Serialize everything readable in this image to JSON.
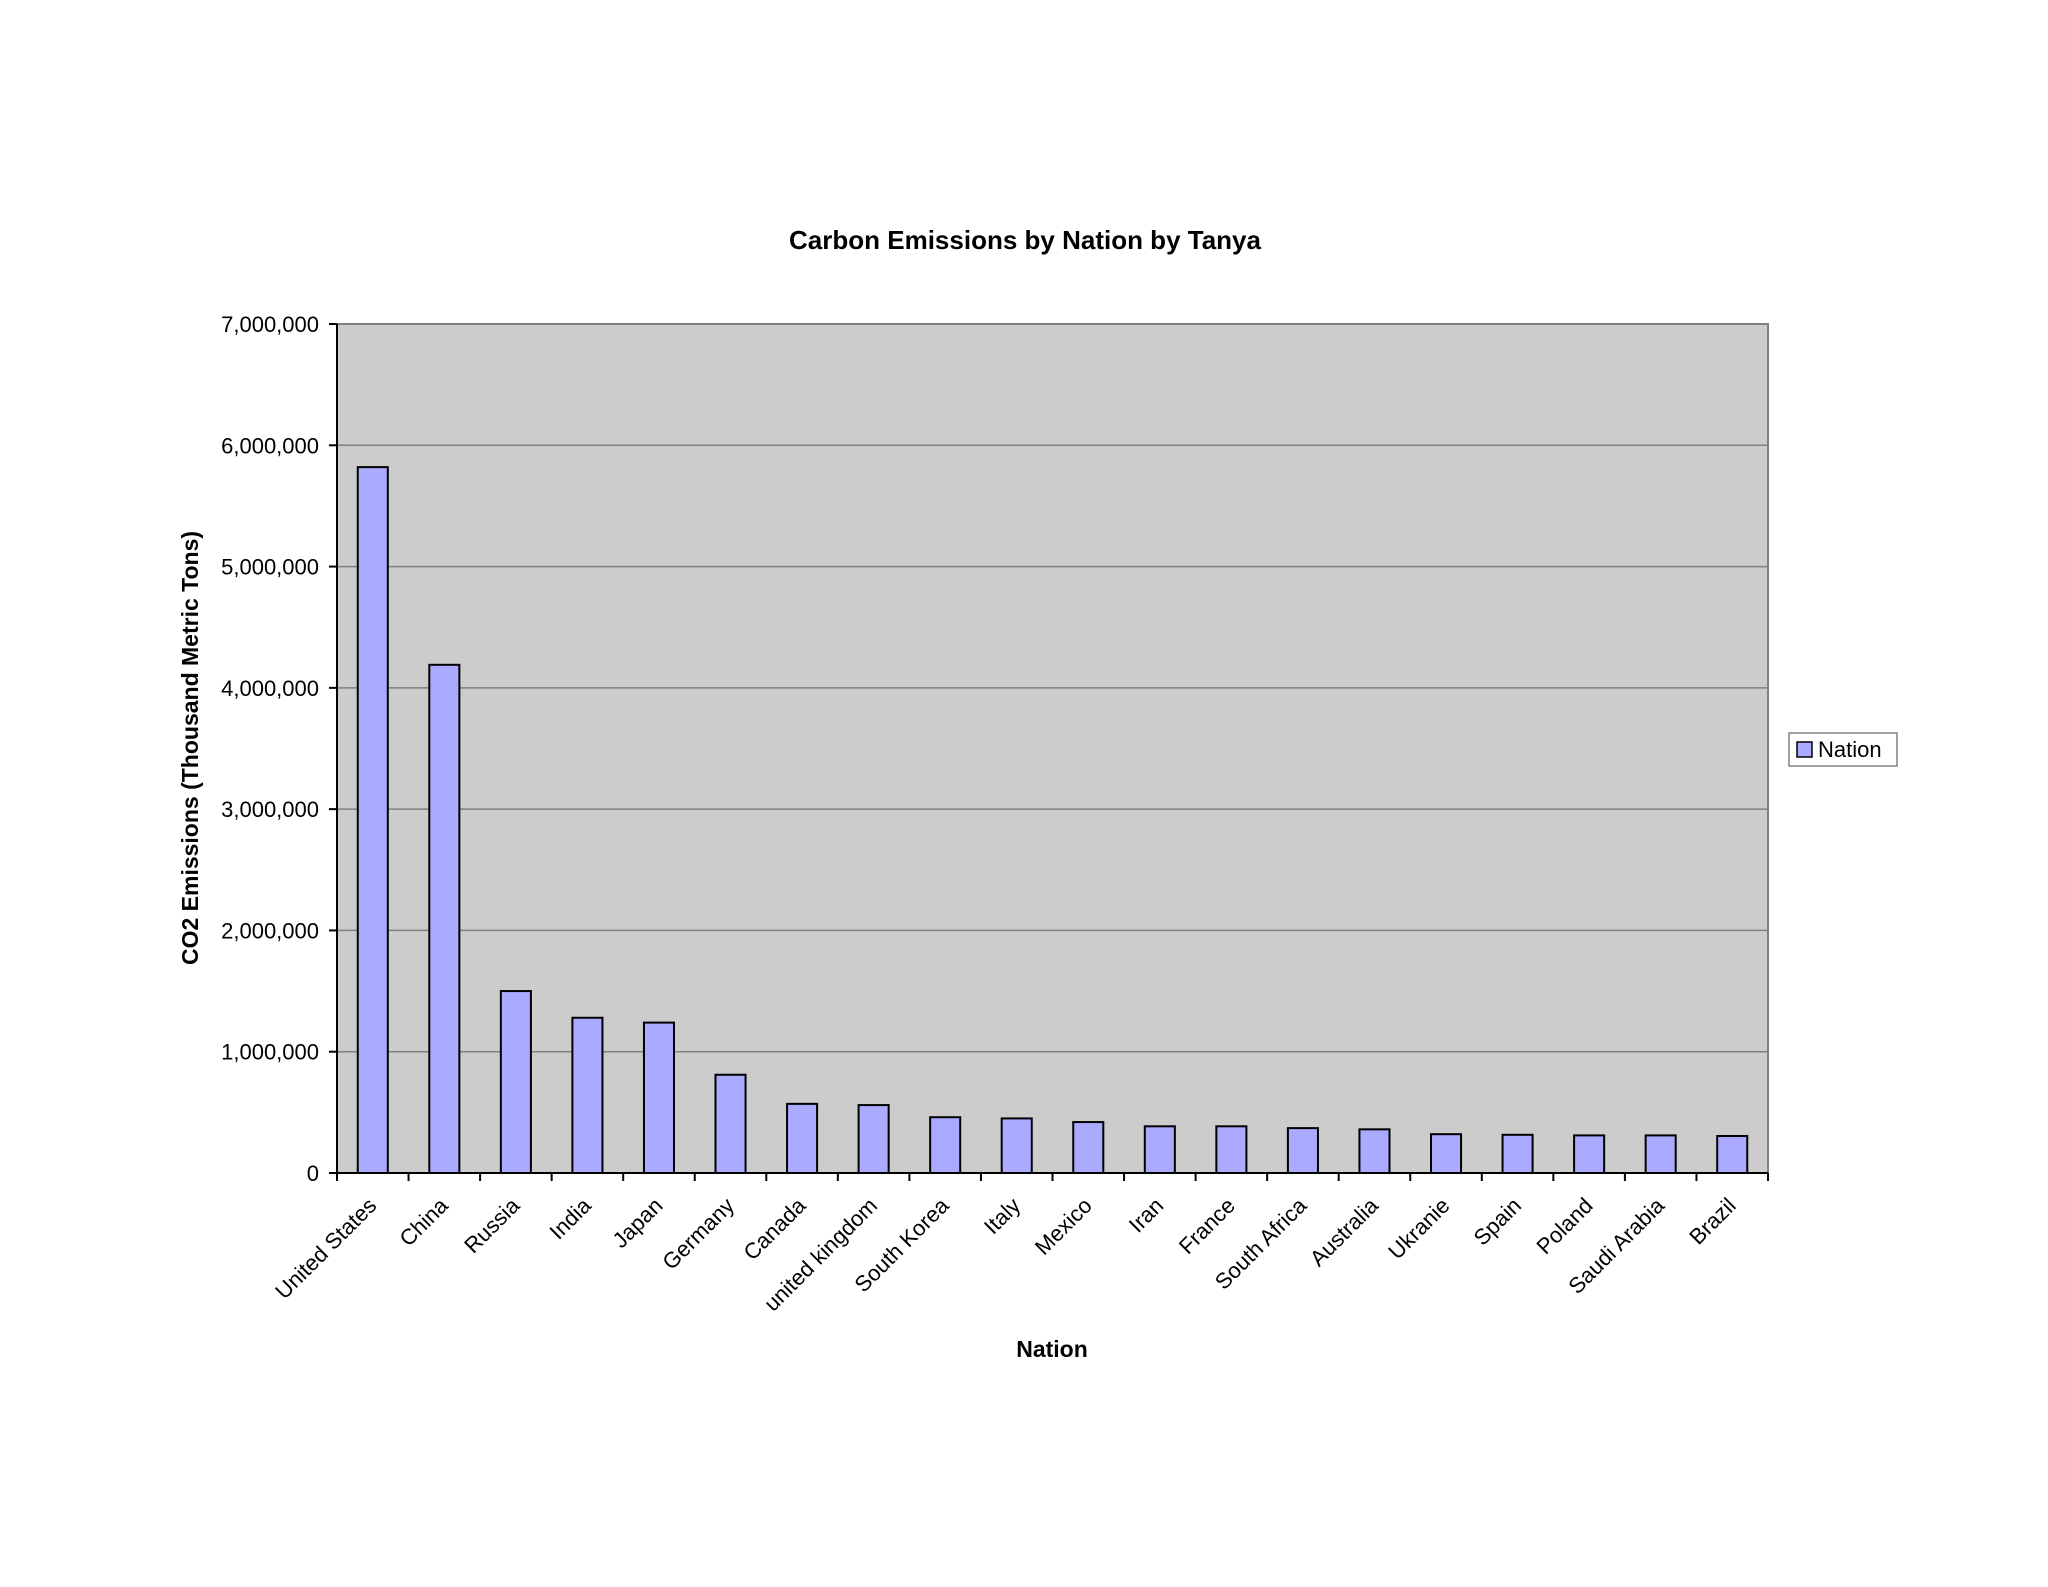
{
  "chart_data": {
    "type": "bar",
    "title": "Carbon Emissions by Nation by Tanya",
    "xlabel": "Nation",
    "ylabel": "CO2 Emissions (Thousand Metric Tons)",
    "ylim": [
      0,
      7000000
    ],
    "yticks": [
      "0",
      "1,000,000",
      "2,000,000",
      "3,000,000",
      "4,000,000",
      "5,000,000",
      "6,000,000",
      "7,000,000"
    ],
    "grid": true,
    "legend_position": "right",
    "colors": {
      "bar": "#aaaaff",
      "plot_bg": "#cccccc",
      "grid": "#808080"
    },
    "categories": [
      "United States",
      "China",
      "Russia",
      "India",
      "Japan",
      "Germany",
      "Canada",
      "united kingdom",
      "South Korea",
      "Italy",
      "Mexico",
      "Iran",
      "France",
      "South Africa",
      "Australia",
      "Ukranie",
      "Spain",
      "Poland",
      "Saudi Arabia",
      "Brazil"
    ],
    "series": [
      {
        "name": "Nation",
        "values": [
          5820000,
          4190000,
          1500000,
          1280000,
          1240000,
          810000,
          570000,
          560000,
          460000,
          450000,
          420000,
          385000,
          385000,
          370000,
          360000,
          320000,
          315000,
          310000,
          310000,
          305000
        ]
      }
    ]
  }
}
